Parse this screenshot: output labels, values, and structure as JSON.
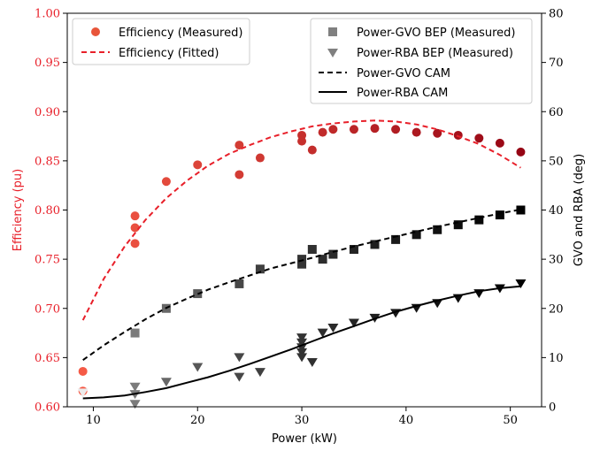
{
  "chart_data": {
    "type": "scatter",
    "xlabel": "Power (kW)",
    "ylabel_left": "Efficiency (pu)",
    "ylabel_right": "GVO and RBA (deg)",
    "xlim": [
      7.5,
      53
    ],
    "ylim_left": [
      0.6,
      1.0
    ],
    "ylim_right": [
      0,
      80
    ],
    "x_ticks": [
      10,
      20,
      30,
      40,
      50
    ],
    "y_ticks_left": [
      "0.60",
      "0.65",
      "0.70",
      "0.75",
      "0.80",
      "0.85",
      "0.90",
      "0.95",
      "1.00"
    ],
    "y_ticks_right": [
      0,
      10,
      20,
      30,
      40,
      50,
      60,
      70,
      80
    ],
    "grid": false,
    "legend_left": {
      "placement": "top-left",
      "entries": [
        "Efficiency (Measured)",
        "Efficiency (Fitted)"
      ]
    },
    "legend_right": {
      "placement": "top-right",
      "entries": [
        "Power-GVO BEP (Measured)",
        "Power-RBA BEP (Measured)",
        "Power-GVO CAM",
        "Power-RBA CAM"
      ]
    },
    "colors": {
      "efficiency_accent": "#e8202a",
      "efficiency_fit": "#e8202a",
      "cam_lines": "#000000"
    },
    "series": [
      {
        "name": "Efficiency (Measured)",
        "axis": "left",
        "marker": "circle",
        "points": [
          [
            9,
            0.636
          ],
          [
            9,
            0.616
          ],
          [
            14,
            0.794
          ],
          [
            14,
            0.782
          ],
          [
            14,
            0.766
          ],
          [
            17,
            0.829
          ],
          [
            20,
            0.846
          ],
          [
            24,
            0.866
          ],
          [
            24,
            0.836
          ],
          [
            26,
            0.853
          ],
          [
            30,
            0.876
          ],
          [
            30,
            0.87
          ],
          [
            31,
            0.861
          ],
          [
            32,
            0.879
          ],
          [
            33,
            0.882
          ],
          [
            35,
            0.882
          ],
          [
            37,
            0.883
          ],
          [
            39,
            0.882
          ],
          [
            41,
            0.879
          ],
          [
            43,
            0.878
          ],
          [
            45,
            0.876
          ],
          [
            47,
            0.873
          ],
          [
            49,
            0.868
          ],
          [
            51,
            0.859
          ]
        ]
      },
      {
        "name": "Efficiency (Fitted)",
        "axis": "left",
        "style": "dashed",
        "points": [
          [
            9,
            0.688
          ],
          [
            11,
            0.73
          ],
          [
            13,
            0.763
          ],
          [
            15,
            0.79
          ],
          [
            17,
            0.812
          ],
          [
            19,
            0.83
          ],
          [
            21,
            0.845
          ],
          [
            23,
            0.857
          ],
          [
            25,
            0.866
          ],
          [
            27,
            0.874
          ],
          [
            29,
            0.88
          ],
          [
            31,
            0.885
          ],
          [
            33,
            0.888
          ],
          [
            35,
            0.89
          ],
          [
            37,
            0.891
          ],
          [
            39,
            0.89
          ],
          [
            41,
            0.887
          ],
          [
            43,
            0.882
          ],
          [
            45,
            0.875
          ],
          [
            47,
            0.867
          ],
          [
            49,
            0.856
          ],
          [
            51,
            0.843
          ]
        ]
      },
      {
        "name": "Power-GVO BEP (Measured)",
        "axis": "right",
        "marker": "square",
        "points": [
          [
            14,
            15
          ],
          [
            17,
            20
          ],
          [
            20,
            23
          ],
          [
            24,
            25
          ],
          [
            26,
            28
          ],
          [
            30,
            30
          ],
          [
            30,
            29
          ],
          [
            31,
            32
          ],
          [
            32,
            30
          ],
          [
            33,
            31
          ],
          [
            35,
            32
          ],
          [
            37,
            33
          ],
          [
            39,
            34
          ],
          [
            41,
            35
          ],
          [
            43,
            36
          ],
          [
            45,
            37
          ],
          [
            47,
            38
          ],
          [
            49,
            39
          ],
          [
            51,
            40
          ]
        ]
      },
      {
        "name": "Power-RBA BEP (Measured)",
        "axis": "right",
        "marker": "triangle-down",
        "points": [
          [
            9,
            2.8
          ],
          [
            14,
            4
          ],
          [
            14,
            2.5
          ],
          [
            14,
            0.5
          ],
          [
            17,
            5
          ],
          [
            20,
            8
          ],
          [
            24,
            10
          ],
          [
            24,
            6
          ],
          [
            26,
            7
          ],
          [
            30,
            14
          ],
          [
            30,
            13
          ],
          [
            30,
            12
          ],
          [
            30,
            11
          ],
          [
            30,
            10
          ],
          [
            31,
            9
          ],
          [
            32,
            15
          ],
          [
            33,
            16
          ],
          [
            35,
            17
          ],
          [
            37,
            18
          ],
          [
            39,
            19
          ],
          [
            41,
            20
          ],
          [
            43,
            21
          ],
          [
            45,
            22
          ],
          [
            47,
            23
          ],
          [
            49,
            24
          ],
          [
            51,
            25
          ]
        ]
      },
      {
        "name": "Power-GVO CAM",
        "axis": "right",
        "style": "dashed",
        "points": [
          [
            9,
            9.5
          ],
          [
            11,
            12.5
          ],
          [
            13,
            15.2
          ],
          [
            15,
            17.8
          ],
          [
            17,
            20.1
          ],
          [
            19,
            22.0
          ],
          [
            21,
            23.8
          ],
          [
            23,
            25.3
          ],
          [
            25,
            26.7
          ],
          [
            27,
            28.1
          ],
          [
            29,
            29.2
          ],
          [
            31,
            30.3
          ],
          [
            33,
            31.5
          ],
          [
            35,
            32.6
          ],
          [
            37,
            33.6
          ],
          [
            39,
            34.6
          ],
          [
            41,
            35.6
          ],
          [
            43,
            36.6
          ],
          [
            45,
            37.5
          ],
          [
            47,
            38.4
          ],
          [
            49,
            39.3
          ],
          [
            51,
            40.1
          ]
        ]
      },
      {
        "name": "Power-RBA CAM",
        "axis": "right",
        "style": "solid",
        "points": [
          [
            9,
            1.7
          ],
          [
            11,
            1.9
          ],
          [
            13,
            2.3
          ],
          [
            15,
            3.0
          ],
          [
            17,
            3.8
          ],
          [
            19,
            4.9
          ],
          [
            21,
            6.0
          ],
          [
            23,
            7.3
          ],
          [
            25,
            8.7
          ],
          [
            27,
            10.2
          ],
          [
            29,
            11.7
          ],
          [
            31,
            13.3
          ],
          [
            33,
            14.9
          ],
          [
            35,
            16.4
          ],
          [
            37,
            17.9
          ],
          [
            39,
            19.3
          ],
          [
            41,
            20.5
          ],
          [
            43,
            21.6
          ],
          [
            45,
            22.6
          ],
          [
            47,
            23.5
          ],
          [
            49,
            24.1
          ],
          [
            51,
            24.5
          ]
        ]
      }
    ]
  }
}
